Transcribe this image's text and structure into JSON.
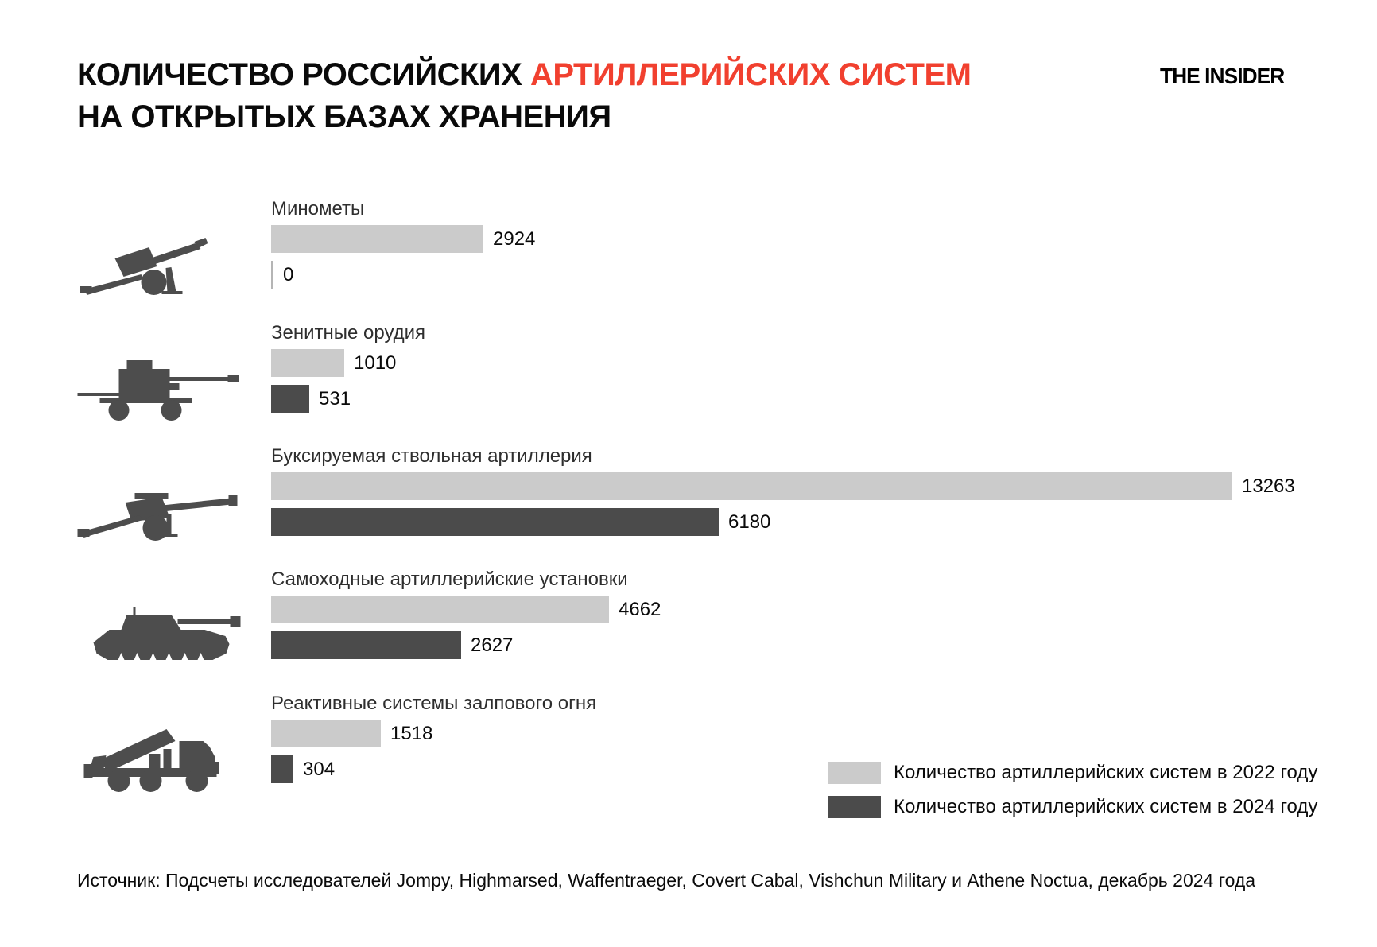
{
  "header": {
    "title_line1_black": "КОЛИЧЕСТВО РОССИЙСКИХ ",
    "title_line1_red": "АРТИЛЛЕРИЙСКИХ СИСТЕМ",
    "title_line2": "НА ОТКРЫТЫХ БАЗАХ ХРАНЕНИЯ",
    "logo": "THE INSIDER"
  },
  "legend": {
    "item_2022": "Количество артиллерийских систем в 2022 году",
    "item_2024": "Количество артиллерийских систем в 2024 году"
  },
  "source": "Источник: Подсчеты исследователей Jompy, Highmarsed, Waffentraeger, Covert Cabal, Vishchun Military и Athene Noctua, декабрь 2024 года",
  "colors": {
    "accent_red": "#F1402F",
    "bar_2022": "#CBCBCB",
    "bar_2024": "#4B4B4B",
    "icon": "#4D4D4D"
  },
  "chart_data": {
    "type": "bar",
    "orientation": "horizontal",
    "title": "КОЛИЧЕСТВО РОССИЙСКИХ АРТИЛЛЕРИЙСКИХ СИСТЕМ НА ОТКРЫТЫХ БАЗАХ ХРАНЕНИЯ",
    "categories": [
      "Минометы",
      "Зенитные орудия",
      "Буксируемая ствольная артиллерия",
      "Самоходные артиллерийские установки",
      "Реактивные системы залпового огня"
    ],
    "series": [
      {
        "name": "Количество артиллерийских систем в 2022 году",
        "color": "#CBCBCB",
        "values": [
          2924,
          1010,
          13263,
          4662,
          1518
        ]
      },
      {
        "name": "Количество артиллерийских систем в 2024 году",
        "color": "#4B4B4B",
        "values": [
          0,
          531,
          6180,
          2627,
          304
        ]
      }
    ],
    "icons": [
      "towed-mortar-icon",
      "anti-aircraft-gun-icon",
      "towed-artillery-icon",
      "self-propelled-artillery-icon",
      "mlrs-truck-icon"
    ],
    "xmax": 13263,
    "value_labels": true,
    "grid": false,
    "legend_position": "bottom-right"
  }
}
